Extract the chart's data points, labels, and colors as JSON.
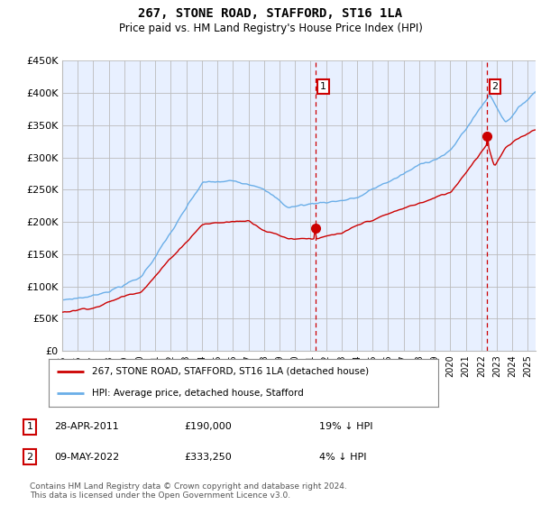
{
  "title": "267, STONE ROAD, STAFFORD, ST16 1LA",
  "subtitle": "Price paid vs. HM Land Registry's House Price Index (HPI)",
  "ylim": [
    0,
    450000
  ],
  "yticks": [
    0,
    50000,
    100000,
    150000,
    200000,
    250000,
    300000,
    350000,
    400000,
    450000
  ],
  "ytick_labels": [
    "£0",
    "£50K",
    "£100K",
    "£150K",
    "£200K",
    "£250K",
    "£300K",
    "£350K",
    "£400K",
    "£450K"
  ],
  "xlim_start": 1995,
  "xlim_end": 2025.5,
  "background_color": "#ffffff",
  "plot_bg_color": "#e8f0ff",
  "grid_color": "#bbbbbb",
  "hpi_color": "#6aaee8",
  "price_color": "#cc0000",
  "vline_color": "#cc0000",
  "point1_year": 2011.33,
  "point1_price": 190000,
  "point1_label": "1",
  "point2_year": 2022.37,
  "point2_price": 333250,
  "point2_label": "2",
  "legend_label_red": "267, STONE ROAD, STAFFORD, ST16 1LA (detached house)",
  "legend_label_blue": "HPI: Average price, detached house, Stafford",
  "footer": "Contains HM Land Registry data © Crown copyright and database right 2024.\nThis data is licensed under the Open Government Licence v3.0.",
  "table_rows": [
    {
      "num": "1",
      "date": "28-APR-2011",
      "price": "£190,000",
      "hpi": "19% ↓ HPI"
    },
    {
      "num": "2",
      "date": "09-MAY-2022",
      "price": "£333,250",
      "hpi": "4% ↓ HPI"
    }
  ]
}
